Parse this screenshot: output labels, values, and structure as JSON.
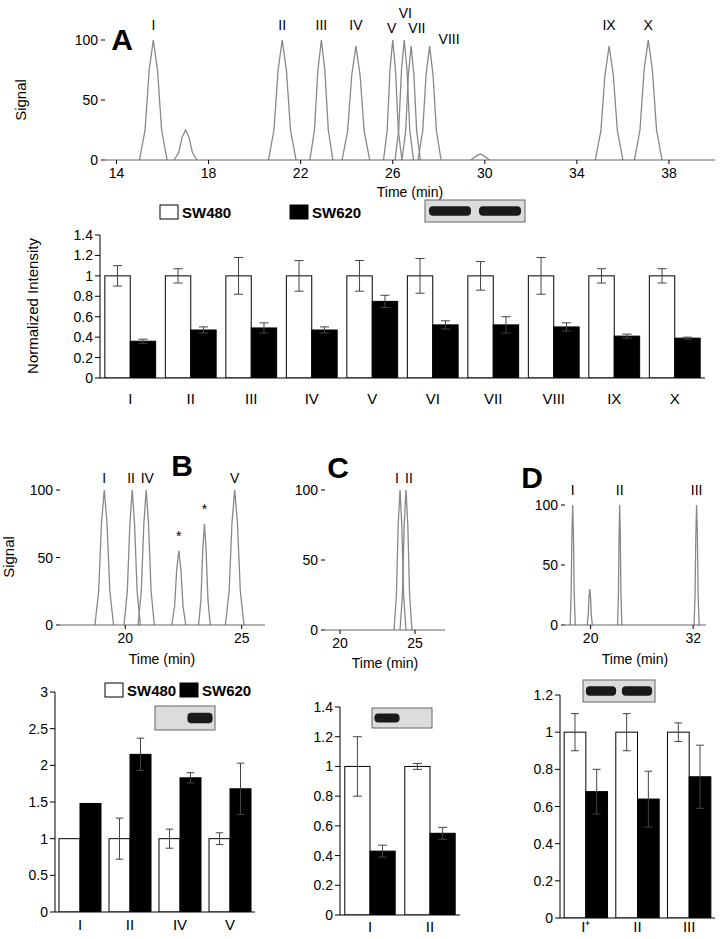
{
  "chart_data": [
    {
      "type": "line",
      "title": "A",
      "x_label": "Time (min)",
      "y_label": "Signal",
      "xlim": [
        13.5,
        40
      ],
      "ylim": [
        0,
        100
      ],
      "xticks": [
        14,
        18,
        22,
        26,
        30,
        34,
        38
      ],
      "yticks": [
        0,
        50,
        100
      ],
      "color": "#888888",
      "series": [
        {
          "x": [
            15.0,
            15.24,
            15.42,
            15.6,
            15.78,
            15.96,
            16.2
          ],
          "values": [
            0,
            25,
            75,
            100,
            75,
            25,
            0
          ]
        },
        {
          "x": [
            16.5,
            16.7,
            16.85,
            17.0,
            17.15,
            17.3,
            17.5
          ],
          "values": [
            0,
            6,
            19,
            25,
            19,
            6,
            0
          ]
        },
        {
          "x": [
            20.6,
            20.84,
            21.02,
            21.2,
            21.38,
            21.56,
            21.8
          ],
          "values": [
            0,
            25,
            75,
            100,
            75,
            25,
            0
          ]
        },
        {
          "x": [
            22.4,
            22.6,
            22.75,
            22.9,
            23.05,
            23.2,
            23.4
          ],
          "values": [
            0,
            25,
            75,
            100,
            75,
            25,
            0
          ]
        },
        {
          "x": [
            23.8,
            24.04,
            24.22,
            24.4,
            24.58,
            24.76,
            25.0
          ],
          "values": [
            0,
            24,
            71,
            95,
            71,
            24,
            0
          ]
        },
        {
          "x": [
            25.6,
            25.76,
            25.88,
            26.0,
            26.12,
            26.24,
            26.4
          ],
          "values": [
            0,
            25,
            75,
            100,
            75,
            25,
            0
          ]
        },
        {
          "x": [
            26.1,
            26.26,
            26.38,
            26.5,
            26.62,
            26.74,
            26.9
          ],
          "values": [
            0,
            25,
            75,
            100,
            75,
            25,
            0
          ]
        },
        {
          "x": [
            26.4,
            26.56,
            26.68,
            26.8,
            26.92,
            27.04,
            27.2
          ],
          "values": [
            0,
            24,
            71,
            95,
            71,
            24,
            0
          ]
        },
        {
          "x": [
            27.1,
            27.3,
            27.45,
            27.6,
            27.75,
            27.9,
            28.1
          ],
          "values": [
            0,
            24,
            71,
            95,
            71,
            24,
            0
          ]
        },
        {
          "x": [
            29.4,
            29.6,
            29.8,
            30.0,
            30.2
          ],
          "values": [
            0,
            3,
            5,
            3,
            0
          ]
        },
        {
          "x": [
            34.8,
            35.04,
            35.22,
            35.4,
            35.58,
            35.76,
            36.0
          ],
          "values": [
            0,
            24,
            71,
            95,
            71,
            24,
            0
          ]
        },
        {
          "x": [
            36.5,
            36.74,
            36.92,
            37.1,
            37.28,
            37.46,
            37.7
          ],
          "values": [
            0,
            25,
            75,
            100,
            75,
            25,
            0
          ]
        }
      ],
      "annotations": [
        {
          "text": "I",
          "x": 15.6,
          "y": 108
        },
        {
          "text": "II",
          "x": 21.2,
          "y": 108
        },
        {
          "text": "III",
          "x": 22.9,
          "y": 108
        },
        {
          "text": "IV",
          "x": 24.4,
          "y": 108
        },
        {
          "text": "V",
          "x": 25.95,
          "y": 106
        },
        {
          "text": "VI",
          "x": 26.55,
          "y": 118
        },
        {
          "text": "VII",
          "x": 27.05,
          "y": 106
        },
        {
          "text": "VIII",
          "x": 28.45,
          "y": 97
        },
        {
          "text": "IX",
          "x": 35.4,
          "y": 108
        },
        {
          "text": "X",
          "x": 37.1,
          "y": 108
        }
      ]
    },
    {
      "type": "bar",
      "y_label": "Normalized Intensity",
      "categories": [
        "I",
        "II",
        "III",
        "IV",
        "V",
        "VI",
        "VII",
        "VIII",
        "IX",
        "X"
      ],
      "ylim": [
        0,
        1.4
      ],
      "yticks": [
        0,
        0.2,
        0.4,
        0.6,
        0.8,
        1,
        1.2,
        1.4
      ],
      "legend": "top",
      "series": [
        {
          "name": "SW480",
          "color": "#ffffff",
          "values": [
            1,
            1,
            1,
            1,
            1,
            1,
            1,
            1,
            1,
            1
          ],
          "errors": [
            0.1,
            0.07,
            0.18,
            0.15,
            0.15,
            0.17,
            0.14,
            0.18,
            0.07,
            0.07
          ]
        },
        {
          "name": "SW620",
          "color": "#000000",
          "values": [
            0.36,
            0.47,
            0.49,
            0.47,
            0.75,
            0.52,
            0.52,
            0.5,
            0.41,
            0.39
          ],
          "errors": [
            0.02,
            0.03,
            0.05,
            0.03,
            0.06,
            0.04,
            0.08,
            0.04,
            0.02,
            0.01
          ]
        }
      ]
    },
    {
      "type": "line",
      "title": "B",
      "x_label": "Time (min)",
      "y_label": "Signal",
      "xlim": [
        17.2,
        26
      ],
      "ylim": [
        0,
        100
      ],
      "xticks": [
        20,
        25
      ],
      "yticks": [
        0,
        50,
        100
      ],
      "color": "#888888",
      "series": [
        {
          "x": [
            18.7,
            18.86,
            18.98,
            19.1,
            19.22,
            19.34,
            19.5
          ],
          "values": [
            0,
            25,
            75,
            100,
            75,
            25,
            0
          ]
        },
        {
          "x": [
            19.95,
            20.09,
            20.2,
            20.3,
            20.4,
            20.51,
            20.65
          ],
          "values": [
            0,
            25,
            75,
            100,
            75,
            25,
            0
          ]
        },
        {
          "x": [
            20.55,
            20.69,
            20.8,
            20.9,
            21.0,
            21.11,
            21.25
          ],
          "values": [
            0,
            25,
            75,
            100,
            75,
            25,
            0
          ]
        },
        {
          "x": [
            22.0,
            22.12,
            22.21,
            22.3,
            22.39,
            22.48,
            22.6
          ],
          "values": [
            0,
            14,
            41,
            55,
            41,
            14,
            0
          ]
        },
        {
          "x": [
            23.15,
            23.25,
            23.33,
            23.4,
            23.47,
            23.55,
            23.65
          ],
          "values": [
            0,
            19,
            56,
            75,
            56,
            19,
            0
          ]
        },
        {
          "x": [
            24.3,
            24.46,
            24.58,
            24.7,
            24.82,
            24.94,
            25.1
          ],
          "values": [
            0,
            25,
            75,
            100,
            75,
            25,
            0
          ]
        }
      ],
      "annotations": [
        {
          "text": "I",
          "x": 19.1,
          "y": 105
        },
        {
          "text": "II",
          "x": 20.25,
          "y": 105
        },
        {
          "text": "IV",
          "x": 20.95,
          "y": 105
        },
        {
          "text": "*",
          "x": 22.3,
          "y": 62
        },
        {
          "text": "*",
          "x": 23.4,
          "y": 82
        },
        {
          "text": "V",
          "x": 24.7,
          "y": 105
        }
      ]
    },
    {
      "type": "bar",
      "categories": [
        "I",
        "II",
        "IV",
        "V"
      ],
      "ylim": [
        0,
        3
      ],
      "yticks": [
        0,
        0.5,
        1,
        1.5,
        2,
        2.5,
        3
      ],
      "legend": "top",
      "series": [
        {
          "name": "SW480",
          "color": "#ffffff",
          "values": [
            1,
            1,
            1,
            1
          ],
          "errors": [
            0,
            0.28,
            0.13,
            0.08
          ]
        },
        {
          "name": "SW620",
          "color": "#000000",
          "values": [
            1.48,
            2.15,
            1.83,
            1.68
          ],
          "errors": [
            0,
            0.22,
            0.07,
            0.35
          ]
        }
      ]
    },
    {
      "type": "line",
      "title": "C",
      "x_label": "Time (min)",
      "xlim": [
        19,
        27
      ],
      "ylim": [
        0,
        100
      ],
      "xticks": [
        20,
        25
      ],
      "yticks": [
        0,
        50,
        100
      ],
      "color": "#888888",
      "series": [
        {
          "x": [
            23.6,
            23.76,
            23.88,
            24.0,
            24.12,
            24.24,
            24.4
          ],
          "values": [
            0,
            25,
            75,
            100,
            75,
            25,
            0
          ]
        },
        {
          "x": [
            24.0,
            24.16,
            24.28,
            24.4,
            24.52,
            24.64,
            24.8
          ],
          "values": [
            0,
            25,
            75,
            100,
            75,
            25,
            0
          ]
        }
      ],
      "annotations": [
        {
          "text": "I",
          "x": 23.8,
          "y": 105
        },
        {
          "text": "II",
          "x": 24.6,
          "y": 105
        }
      ]
    },
    {
      "type": "bar",
      "categories": [
        "I",
        "II"
      ],
      "ylim": [
        0,
        1.4
      ],
      "yticks": [
        0,
        0.2,
        0.4,
        0.6,
        0.8,
        1,
        1.2,
        1.4
      ],
      "legend": false,
      "series": [
        {
          "name": "SW480",
          "color": "#ffffff",
          "values": [
            1,
            1
          ],
          "errors": [
            0.2,
            0.02
          ]
        },
        {
          "name": "SW620",
          "color": "#000000",
          "values": [
            0.43,
            0.55
          ],
          "errors": [
            0.04,
            0.04
          ]
        }
      ]
    },
    {
      "type": "line",
      "title": "D",
      "x_label": "Time (min)",
      "xlim": [
        17,
        33.5
      ],
      "ylim": [
        0,
        100
      ],
      "xticks": [
        20,
        32
      ],
      "yticks": [
        0,
        50,
        100
      ],
      "color": "#888888",
      "series": [
        {
          "x": [
            17.6,
            17.72,
            17.81,
            17.9,
            17.99,
            18.08,
            18.2
          ],
          "values": [
            0,
            25,
            75,
            100,
            75,
            25,
            0
          ]
        },
        {
          "x": [
            19.6,
            19.72,
            19.81,
            19.9,
            19.99,
            20.08,
            20.2
          ],
          "values": [
            0,
            8,
            23,
            30,
            23,
            8,
            0
          ]
        },
        {
          "x": [
            23.15,
            23.25,
            23.33,
            23.4,
            23.47,
            23.55,
            23.65
          ],
          "values": [
            0,
            25,
            75,
            100,
            75,
            25,
            0
          ]
        },
        {
          "x": [
            32.1,
            32.22,
            32.31,
            32.4,
            32.49,
            32.58,
            32.7
          ],
          "values": [
            0,
            25,
            75,
            100,
            75,
            25,
            0
          ]
        }
      ],
      "annotations": [
        {
          "text": "I",
          "x": 17.9,
          "y": 108
        },
        {
          "text": "II",
          "x": 23.4,
          "y": 108
        },
        {
          "text": "III",
          "x": 32.4,
          "y": 108
        }
      ]
    },
    {
      "type": "bar",
      "categories": [
        "I⁺",
        "II",
        "III"
      ],
      "ylim": [
        0,
        1.2
      ],
      "yticks": [
        0,
        0.2,
        0.4,
        0.6,
        0.8,
        1,
        1.2
      ],
      "legend": false,
      "series": [
        {
          "name": "SW480",
          "color": "#ffffff",
          "values": [
            1,
            1,
            1
          ],
          "errors": [
            0.1,
            0.1,
            0.05
          ]
        },
        {
          "name": "SW620",
          "color": "#000000",
          "values": [
            0.68,
            0.64,
            0.76
          ],
          "errors": [
            0.12,
            0.15,
            0.17
          ]
        }
      ]
    }
  ]
}
